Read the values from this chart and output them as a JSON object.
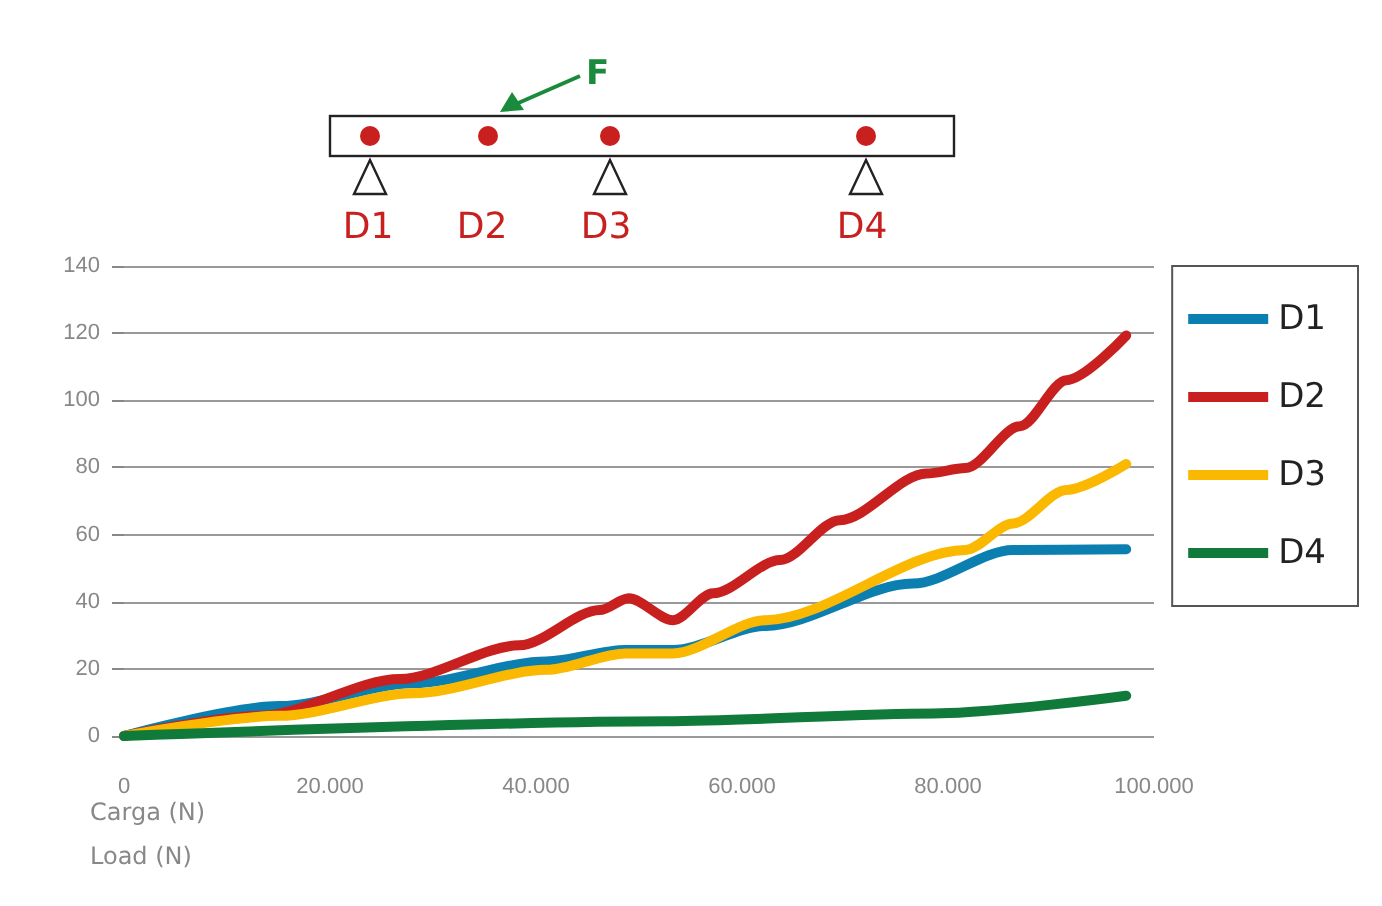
{
  "chart_data": {
    "type": "line",
    "xlabel": "Carga (N)\nLoad (N)",
    "annotations": [
      "F",
      "D1",
      "D2",
      "D3",
      "D4"
    ],
    "xlim": [
      0,
      100000
    ],
    "xticks": [
      0,
      {
        "value": 20000,
        "label": "20.000"
      },
      {
        "value": 40000,
        "label": "40.000"
      },
      {
        "value": 60000,
        "label": "60.000"
      },
      {
        "value": 80000,
        "label": "80.000"
      },
      {
        "value": 100000,
        "label": "100.000"
      }
    ],
    "ylim": [
      0,
      140
    ],
    "yticks": [
      0,
      20,
      40,
      60,
      80,
      100,
      120,
      140
    ],
    "grid": "y",
    "legend": "right",
    "marker": "none",
    "line_style": "solid",
    "series": [
      {
        "name": "D1",
        "color": "#0a7fb0",
        "x": [
          0,
          15100,
          28100,
          41000,
          48700,
          53300,
          62300,
          76600,
          86300,
          97300
        ],
        "values": [
          0,
          8.9,
          15.7,
          22.2,
          25.6,
          25.6,
          32.8,
          45.4,
          55.4,
          55.6
        ]
      },
      {
        "name": "D2",
        "color": "#c8201f",
        "x": [
          0,
          13200,
          26800,
          38400,
          46200,
          49000,
          53300,
          57200,
          63700,
          69500,
          77900,
          81700,
          87000,
          91500,
          97300
        ],
        "values": [
          0,
          6,
          17,
          27,
          37.5,
          41,
          34.5,
          42.5,
          52.4,
          64.3,
          78.2,
          79.8,
          92.3,
          106,
          119.3
        ]
      },
      {
        "name": "D3",
        "color": "#fbb800",
        "x": [
          0,
          15100,
          28100,
          41000,
          48700,
          53300,
          62300,
          81700,
          86300,
          91500,
          97300
        ],
        "values": [
          0,
          6,
          12.7,
          19.7,
          24.6,
          24.6,
          34.5,
          55.4,
          63.3,
          73.3,
          81
        ]
      },
      {
        "name": "D4",
        "color": "#0f7a3a",
        "x": [
          0,
          52600,
          78600,
          97300
        ],
        "values": [
          0,
          4.4,
          6.7,
          12
        ]
      }
    ]
  }
}
